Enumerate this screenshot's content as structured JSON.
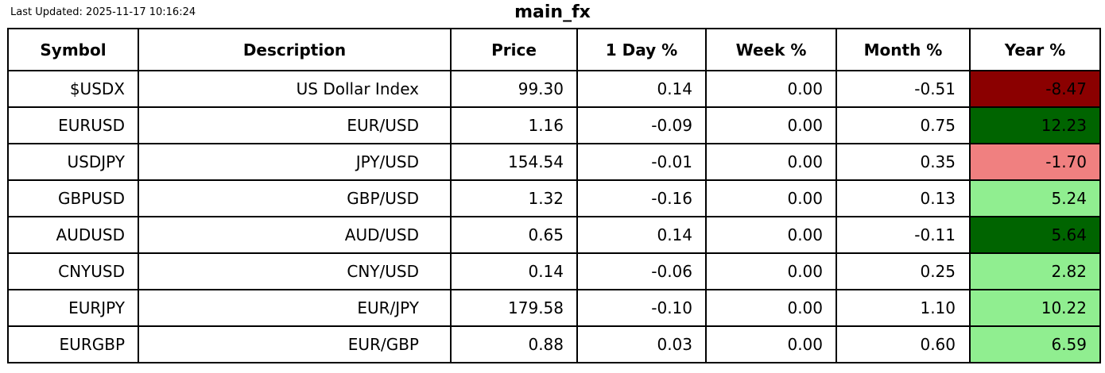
{
  "chart_data": {
    "type": "table",
    "title": "main_fx",
    "last_updated": "Last Updated: 2025-11-17 10:16:24",
    "columns": [
      "Symbol",
      "Description",
      "Price",
      "1 Day %",
      "Week %",
      "Month %",
      "Year %"
    ],
    "rows": [
      {
        "symbol": "$USDX",
        "description": "US Dollar Index",
        "price": "99.30",
        "day_pct": "0.14",
        "week_pct": "0.00",
        "month_pct": "-0.51",
        "year_pct": "-8.47",
        "year_bg": "#8b0000"
      },
      {
        "symbol": "EURUSD",
        "description": "EUR/USD",
        "price": "1.16",
        "day_pct": "-0.09",
        "week_pct": "0.00",
        "month_pct": "0.75",
        "year_pct": "12.23",
        "year_bg": "#006400"
      },
      {
        "symbol": "USDJPY",
        "description": "JPY/USD",
        "price": "154.54",
        "day_pct": "-0.01",
        "week_pct": "0.00",
        "month_pct": "0.35",
        "year_pct": "-1.70",
        "year_bg": "#f08080"
      },
      {
        "symbol": "GBPUSD",
        "description": "GBP/USD",
        "price": "1.32",
        "day_pct": "-0.16",
        "week_pct": "0.00",
        "month_pct": "0.13",
        "year_pct": "5.24",
        "year_bg": "#90ee90"
      },
      {
        "symbol": "AUDUSD",
        "description": "AUD/USD",
        "price": "0.65",
        "day_pct": "0.14",
        "week_pct": "0.00",
        "month_pct": "-0.11",
        "year_pct": "5.64",
        "year_bg": "#006400"
      },
      {
        "symbol": "CNYUSD",
        "description": "CNY/USD",
        "price": "0.14",
        "day_pct": "-0.06",
        "week_pct": "0.00",
        "month_pct": "0.25",
        "year_pct": "2.82",
        "year_bg": "#90ee90"
      },
      {
        "symbol": "EURJPY",
        "description": "EUR/JPY",
        "price": "179.58",
        "day_pct": "-0.10",
        "week_pct": "0.00",
        "month_pct": "1.10",
        "year_pct": "10.22",
        "year_bg": "#90ee90"
      },
      {
        "symbol": "EURGBP",
        "description": "EUR/GBP",
        "price": "0.88",
        "day_pct": "0.03",
        "week_pct": "0.00",
        "month_pct": "0.60",
        "year_pct": "6.59",
        "year_bg": "#90ee90"
      }
    ],
    "layout": {
      "grid": "on",
      "border_color": "#000000",
      "background": "#ffffff"
    }
  },
  "colors": {
    "year_strong_negative": "#8b0000",
    "year_strong_positive": "#006400",
    "year_mild_negative": "#f08080",
    "year_mild_positive": "#90ee90",
    "text": "#000000"
  }
}
